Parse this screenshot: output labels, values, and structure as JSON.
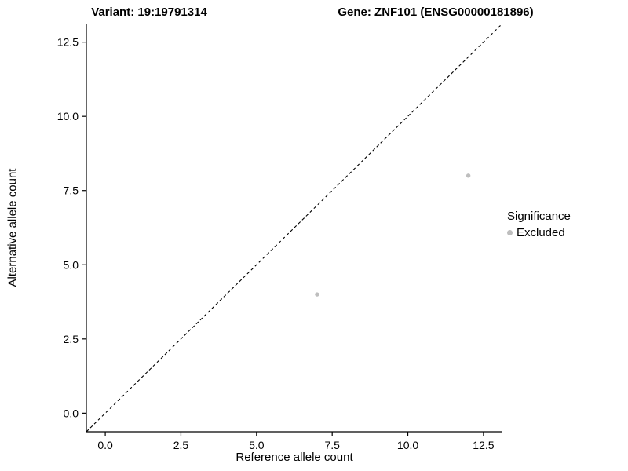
{
  "chart_data": {
    "type": "scatter",
    "title_left": "Variant: 19:19791314",
    "title_right": "Gene: ZNF101 (ENSG00000181896)",
    "xlabel": "Reference allele count",
    "ylabel": "Alternative allele count",
    "xlim": [
      -0.625,
      13.125
    ],
    "ylim": [
      -0.625,
      13.125
    ],
    "ticks": [
      0,
      2.5,
      5,
      7.5,
      10,
      12.5
    ],
    "tick_labels": [
      "0.0",
      "2.5",
      "5.0",
      "7.5",
      "10.0",
      "12.5"
    ],
    "grid": false,
    "series": [
      {
        "name": "Excluded",
        "color": "#bebebe",
        "point_radius": 2.7,
        "points": [
          {
            "x": 7,
            "y": 4
          },
          {
            "x": 12,
            "y": 8
          }
        ]
      }
    ],
    "reference_line": {
      "type": "identity",
      "style": "dashed",
      "color": "#000000"
    },
    "axis_color": "#000000",
    "legend": {
      "title": "Significance",
      "position": "right",
      "entries": [
        {
          "label": "Excluded",
          "color": "#bebebe"
        }
      ]
    }
  }
}
